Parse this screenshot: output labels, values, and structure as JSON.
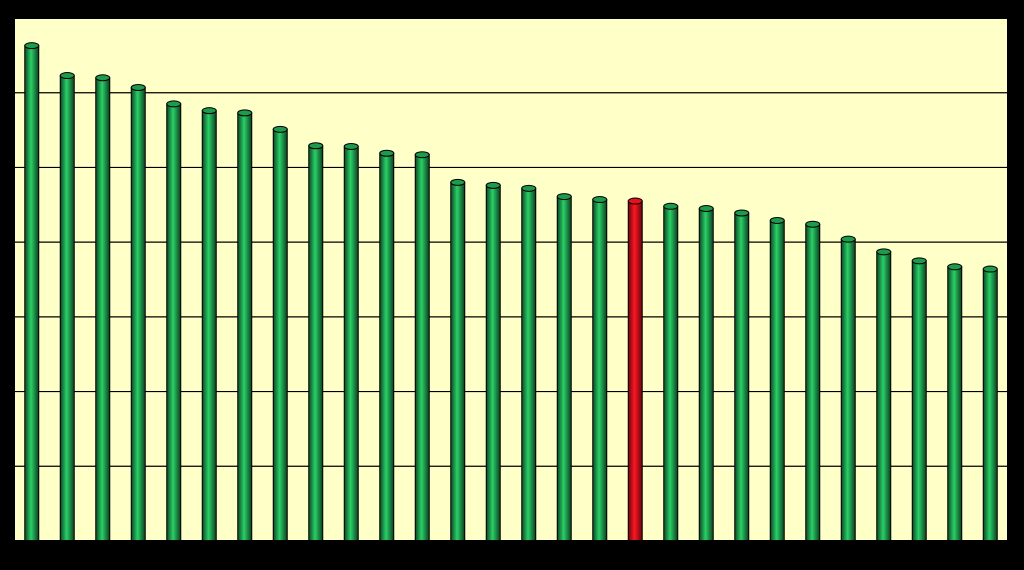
{
  "chart_data": {
    "type": "bar",
    "categories": [
      null,
      null,
      null,
      null,
      null,
      null,
      null,
      null,
      null,
      null,
      null,
      null,
      null,
      null,
      null,
      null,
      null,
      null,
      null,
      null,
      null,
      null,
      null,
      null,
      null,
      null,
      null,
      null
    ],
    "values": [
      6.63,
      6.23,
      6.2,
      6.07,
      5.85,
      5.76,
      5.73,
      5.51,
      5.29,
      5.28,
      5.19,
      5.17,
      4.8,
      4.76,
      4.72,
      4.61,
      4.57,
      4.55,
      4.48,
      4.45,
      4.39,
      4.29,
      4.24,
      4.04,
      3.87,
      3.75,
      3.67,
      3.64
    ],
    "colors": [
      "#1e9a4c",
      "#1e9a4c",
      "#1e9a4c",
      "#1e9a4c",
      "#1e9a4c",
      "#1e9a4c",
      "#1e9a4c",
      "#1e9a4c",
      "#1e9a4c",
      "#1e9a4c",
      "#1e9a4c",
      "#1e9a4c",
      "#1e9a4c",
      "#1e9a4c",
      "#1e9a4c",
      "#1e9a4c",
      "#1e9a4c",
      "#e8101a",
      "#1e9a4c",
      "#1e9a4c",
      "#1e9a4c",
      "#1e9a4c",
      "#1e9a4c",
      "#1e9a4c",
      "#1e9a4c",
      "#1e9a4c",
      "#1e9a4c",
      "#1e9a4c"
    ],
    "ylim": [
      0,
      7
    ],
    "yticks": [
      0,
      1,
      2,
      3,
      4,
      5,
      6,
      7
    ],
    "grid": true
  }
}
